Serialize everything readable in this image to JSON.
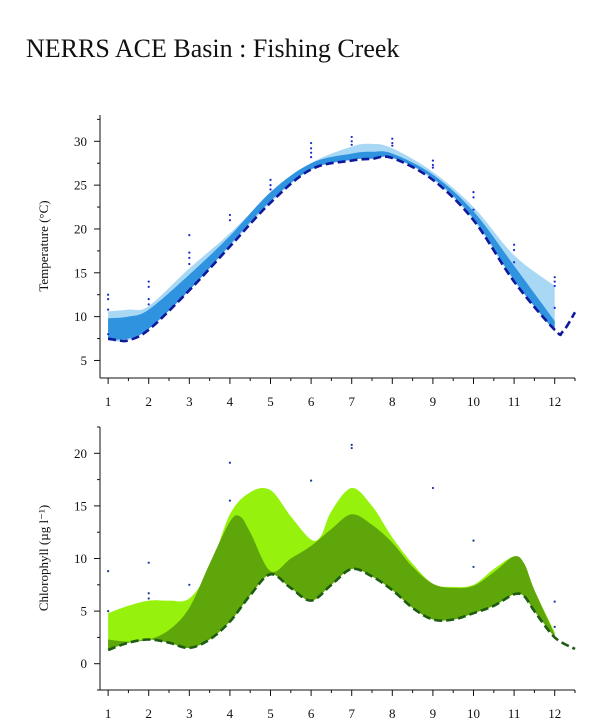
{
  "title": "NERRS ACE Basin : Fishing Creek",
  "chart_data": [
    {
      "type": "area",
      "ylabel": "Temperature (°C)",
      "xlim": [
        0.8,
        12.5
      ],
      "ylim": [
        3,
        33
      ],
      "xticks": [
        1,
        2,
        3,
        4,
        5,
        6,
        7,
        8,
        9,
        10,
        11,
        12
      ],
      "yticks": [
        5,
        10,
        15,
        20,
        25,
        30
      ],
      "colors": {
        "outer_band": "#a9d8f5",
        "inner_band": "#2f93e0",
        "median_line": "#10189c",
        "points": "#1a2ad0"
      },
      "outer_band": {
        "x": [
          1,
          1.5,
          2,
          3,
          4,
          5,
          6,
          7,
          7.5,
          8,
          9,
          10,
          11,
          12
        ],
        "upper": [
          10.6,
          10.8,
          11.2,
          15.5,
          19.5,
          24,
          27.5,
          29.4,
          29.7,
          29.2,
          26.5,
          22.5,
          17,
          13.5
        ],
        "lower": [
          7.2,
          7.3,
          8.6,
          13,
          18,
          23,
          26.8,
          27.9,
          28.1,
          28.2,
          25.6,
          21,
          14,
          8.5
        ]
      },
      "inner_band": {
        "x": [
          1,
          1.5,
          2,
          3,
          4,
          5,
          6,
          7,
          7.5,
          8,
          9,
          10,
          11,
          12
        ],
        "upper": [
          9.8,
          10,
          10.8,
          14.8,
          19.2,
          24.2,
          27.5,
          28.6,
          28.8,
          28.6,
          26.2,
          22,
          15.8,
          9.5
        ],
        "lower": [
          7.4,
          7.5,
          8.6,
          13,
          18.2,
          23.2,
          26.8,
          27.9,
          28,
          28.1,
          25.8,
          21.2,
          14.2,
          8.3
        ]
      },
      "median_line": {
        "x": [
          1,
          1.25,
          1.5,
          2,
          3,
          4,
          5,
          6,
          7,
          7.5,
          8,
          9,
          10,
          11,
          12,
          12.2,
          12.5
        ],
        "y": [
          7.5,
          7.3,
          7.3,
          8.5,
          13,
          18,
          23,
          26.8,
          27.8,
          28,
          28.1,
          25.6,
          21,
          14,
          8.5,
          8.3,
          10.5
        ]
      },
      "points": {
        "x": [
          1,
          1,
          1,
          1,
          2,
          2,
          2,
          2,
          3,
          3,
          3,
          3,
          4,
          4,
          5,
          5,
          5,
          6,
          6,
          6,
          6,
          7,
          7,
          7,
          8,
          8,
          8,
          9,
          9,
          9,
          10,
          10,
          10,
          11,
          11,
          11,
          12,
          12,
          12,
          12
        ],
        "y": [
          12.5,
          12,
          10.8,
          8,
          14,
          13.4,
          12,
          11.4,
          19.3,
          17.3,
          16.7,
          16,
          21.6,
          21,
          25.6,
          25,
          24.5,
          29.8,
          29.2,
          28.7,
          28.2,
          30.5,
          30,
          29.6,
          30.3,
          29.8,
          29.5,
          27.8,
          27.3,
          27,
          24.2,
          23.6,
          22.2,
          18.2,
          17.6,
          16.2,
          14.5,
          14,
          13.5,
          11
        ]
      }
    },
    {
      "type": "area",
      "ylabel": "Chlorophyll (µg l⁻¹)",
      "xlim": [
        0.8,
        12.5
      ],
      "ylim": [
        -2.5,
        22.5
      ],
      "xticks": [
        1,
        2,
        3,
        4,
        5,
        6,
        7,
        8,
        9,
        10,
        11,
        12
      ],
      "yticks": [
        0,
        5,
        10,
        15,
        20
      ],
      "colors": {
        "outer_band": "#96f20d",
        "inner_band": "#5ea60a",
        "median_line": "#1e5c14",
        "points": "#1a3a9a"
      },
      "outer_band": {
        "x": [
          1,
          1.5,
          2,
          2.5,
          3,
          3.5,
          4,
          4.5,
          5,
          5.5,
          6,
          6.25,
          6.5,
          7,
          7.5,
          8,
          8.5,
          9,
          9.5,
          10,
          10.5,
          11,
          11.25,
          11.5,
          12
        ],
        "upper": [
          4.8,
          5.5,
          6,
          6,
          6.2,
          9,
          14.2,
          16.3,
          16.5,
          14,
          11.8,
          12.2,
          14.5,
          16.7,
          15,
          12,
          9.5,
          7.6,
          7.3,
          7.5,
          9,
          10.2,
          9.5,
          7,
          3
        ],
        "lower": [
          1.3,
          2,
          2.3,
          2,
          1.5,
          2.3,
          4,
          6.5,
          8.5,
          7.2,
          6,
          6.7,
          7.5,
          9,
          8.3,
          7,
          5.3,
          4.2,
          4.2,
          4.8,
          5.5,
          6.6,
          6.4,
          5,
          2.5
        ]
      },
      "inner_band": {
        "x": [
          1,
          1.5,
          2,
          2.5,
          3,
          3.5,
          4,
          4.25,
          4.5,
          5,
          5.5,
          6,
          6.5,
          7,
          7.5,
          8,
          8.5,
          9,
          9.5,
          10,
          10.5,
          11,
          11.25,
          11.5,
          12
        ],
        "upper": [
          2.3,
          2.1,
          2.3,
          3.2,
          5.3,
          9.5,
          13.5,
          14,
          12.5,
          8.8,
          10,
          11.2,
          12.8,
          14.2,
          13.2,
          11.5,
          9.2,
          7.6,
          7.2,
          7.4,
          8.7,
          10.2,
          9.5,
          7,
          2.8
        ],
        "lower": [
          1.3,
          2,
          2.3,
          2,
          1.5,
          2.3,
          4,
          5.2,
          6.5,
          8.5,
          7.2,
          6,
          7.5,
          9,
          8.3,
          7,
          5.3,
          4.2,
          4.2,
          4.8,
          5.5,
          6.6,
          6.4,
          5,
          2.5
        ]
      },
      "median_line": {
        "x": [
          1,
          1.5,
          2,
          2.5,
          3,
          3.5,
          4,
          4.5,
          5,
          5.5,
          6,
          6.5,
          7,
          7.5,
          8,
          8.5,
          9,
          9.5,
          10,
          10.5,
          11,
          11.25,
          11.5,
          12,
          12.5
        ],
        "y": [
          1.3,
          2,
          2.3,
          2,
          1.5,
          2.3,
          4,
          6.5,
          8.5,
          7.2,
          6,
          7.5,
          9,
          8.3,
          7,
          5.3,
          4.2,
          4.2,
          4.8,
          5.5,
          6.6,
          6.4,
          5,
          2.5,
          1.4
        ]
      },
      "points": {
        "x": [
          1,
          1,
          2,
          2,
          2,
          3,
          4,
          4,
          6,
          7,
          7,
          9,
          10,
          10,
          12,
          12
        ],
        "y": [
          8.8,
          5,
          9.6,
          6.7,
          6.2,
          7.5,
          19.1,
          15.5,
          17.4,
          20.8,
          20.5,
          16.7,
          11.7,
          9.2,
          5.9,
          3.5
        ]
      }
    }
  ]
}
